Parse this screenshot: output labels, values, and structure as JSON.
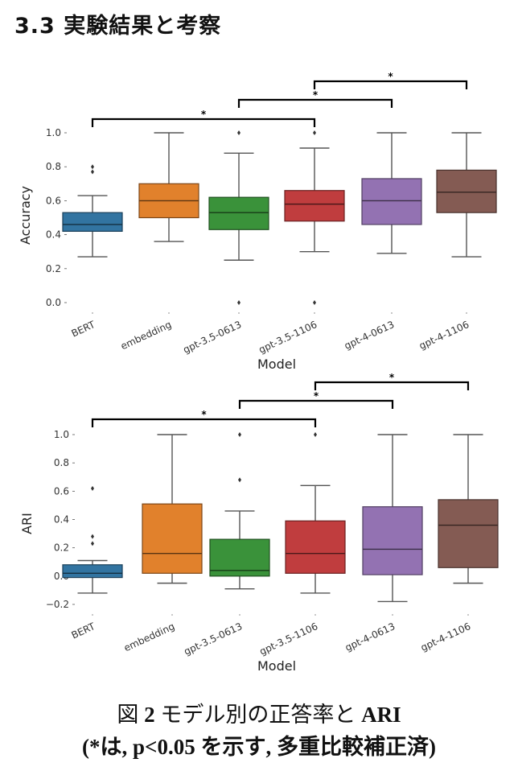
{
  "section": {
    "title": "3.3 実験結果と考察"
  },
  "caption": {
    "line1_prefix": "図 ",
    "line1_num": "2",
    "line1_mid": " モデル別の正答率と ",
    "line1_ari": "ARI",
    "line2": "(*は, p<0.05 を示す, 多重比較補正済)"
  },
  "chart_data": [
    {
      "type": "box",
      "title": "",
      "xlabel": "Model",
      "ylabel": "Accuracy",
      "ylim": [
        -0.02,
        1.02
      ],
      "yticks": [
        0.0,
        0.2,
        0.4,
        0.6,
        0.8,
        1.0
      ],
      "ytick_labels": [
        "0.0",
        "0.2",
        "0.4",
        "0.6",
        "0.8",
        "1.0"
      ],
      "grid": false,
      "categories": [
        "BERT",
        "embedding",
        "gpt-3.5-0613",
        "gpt-3.5-1106",
        "gpt-4-0613",
        "gpt-4-1106"
      ],
      "colors": [
        "#3274a1",
        "#e1812c",
        "#3a923a",
        "#c03d3e",
        "#9372b2",
        "#845b53"
      ],
      "boxes": [
        {
          "whisker_low": 0.27,
          "q1": 0.42,
          "median": 0.46,
          "q3": 0.53,
          "whisker_high": 0.63,
          "outliers": [
            0.8,
            0.77
          ]
        },
        {
          "whisker_low": 0.36,
          "q1": 0.5,
          "median": 0.6,
          "q3": 0.7,
          "whisker_high": 1.0,
          "outliers": []
        },
        {
          "whisker_low": 0.25,
          "q1": 0.43,
          "median": 0.53,
          "q3": 0.62,
          "whisker_high": 0.88,
          "outliers": [
            1.0,
            0.0
          ]
        },
        {
          "whisker_low": 0.3,
          "q1": 0.48,
          "median": 0.58,
          "q3": 0.66,
          "whisker_high": 0.91,
          "outliers": [
            1.0,
            0.0
          ]
        },
        {
          "whisker_low": 0.29,
          "q1": 0.46,
          "median": 0.6,
          "q3": 0.73,
          "whisker_high": 1.0,
          "outliers": []
        },
        {
          "whisker_low": 0.27,
          "q1": 0.53,
          "median": 0.65,
          "q3": 0.78,
          "whisker_high": 1.0,
          "outliers": []
        }
      ],
      "significance": [
        {
          "from": "BERT",
          "to": "gpt-3.5-1106",
          "label": "*"
        },
        {
          "from": "gpt-3.5-0613",
          "to": "gpt-4-0613",
          "label": "*"
        },
        {
          "from": "gpt-3.5-1106",
          "to": "gpt-4-1106",
          "label": "*"
        }
      ]
    },
    {
      "type": "box",
      "title": "",
      "xlabel": "Model",
      "ylabel": "ARI",
      "ylim": [
        -0.22,
        1.02
      ],
      "yticks": [
        -0.2,
        0.0,
        0.2,
        0.4,
        0.6,
        0.8,
        1.0
      ],
      "ytick_labels": [
        "−0.2",
        "0.0",
        "0.2",
        "0.4",
        "0.6",
        "0.8",
        "1.0"
      ],
      "grid": false,
      "categories": [
        "BERT",
        "embedding",
        "gpt-3.5-0613",
        "gpt-3.5-1106",
        "gpt-4-0613",
        "gpt-4-1106"
      ],
      "colors": [
        "#3274a1",
        "#e1812c",
        "#3a923a",
        "#c03d3e",
        "#9372b2",
        "#845b53"
      ],
      "boxes": [
        {
          "whisker_low": -0.12,
          "q1": -0.01,
          "median": 0.02,
          "q3": 0.08,
          "whisker_high": 0.11,
          "outliers": [
            0.62,
            0.28,
            0.23
          ]
        },
        {
          "whisker_low": -0.05,
          "q1": 0.02,
          "median": 0.16,
          "q3": 0.51,
          "whisker_high": 1.0,
          "outliers": []
        },
        {
          "whisker_low": -0.09,
          "q1": 0.0,
          "median": 0.04,
          "q3": 0.26,
          "whisker_high": 0.46,
          "outliers": [
            1.0,
            0.68
          ]
        },
        {
          "whisker_low": -0.12,
          "q1": 0.02,
          "median": 0.16,
          "q3": 0.39,
          "whisker_high": 0.64,
          "outliers": [
            1.0
          ]
        },
        {
          "whisker_low": -0.18,
          "q1": 0.01,
          "median": 0.19,
          "q3": 0.49,
          "whisker_high": 1.0,
          "outliers": []
        },
        {
          "whisker_low": -0.05,
          "q1": 0.06,
          "median": 0.36,
          "q3": 0.54,
          "whisker_high": 1.0,
          "outliers": []
        }
      ],
      "significance": [
        {
          "from": "BERT",
          "to": "gpt-3.5-1106",
          "label": "*"
        },
        {
          "from": "gpt-3.5-0613",
          "to": "gpt-4-0613",
          "label": "*"
        },
        {
          "from": "gpt-3.5-1106",
          "to": "gpt-4-1106",
          "label": "*"
        }
      ]
    }
  ]
}
